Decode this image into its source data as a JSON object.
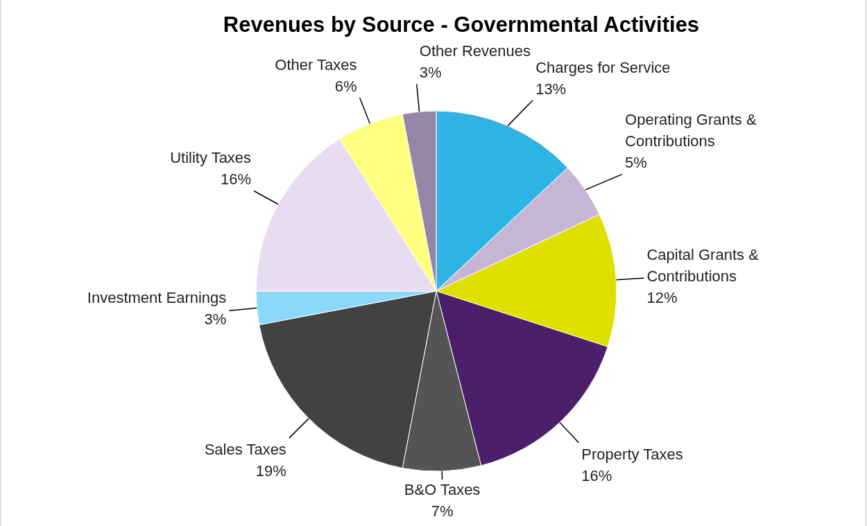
{
  "chart_data": {
    "type": "pie",
    "title": "Revenues by Source - Governmental Activities",
    "categories": [
      "Charges for Service",
      "Operating Grants & Contributions",
      "Capital Grants & Contributions",
      "Property Taxes",
      "B&O Taxes",
      "Sales Taxes",
      "Investment Earnings",
      "Utility Taxes",
      "Other Taxes",
      "Other Revenues"
    ],
    "values": [
      13,
      5,
      12,
      16,
      7,
      19,
      3,
      16,
      6,
      3
    ],
    "colors": [
      "#2db4e2",
      "#c7b5d5",
      "#e0e000",
      "#4b1f6a",
      "#545454",
      "#424242",
      "#8bd8fb",
      "#e8dcf2",
      "#ffff80",
      "#9585a6"
    ],
    "value_labels": [
      "13%",
      "5%",
      "12%",
      "16%",
      "7%",
      "19%",
      "3%",
      "16%",
      "6%",
      "3%"
    ]
  }
}
